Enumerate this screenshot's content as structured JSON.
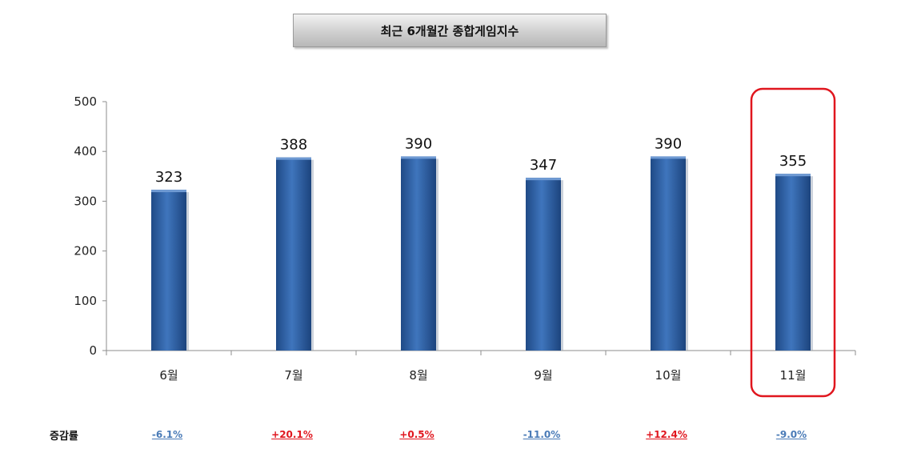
{
  "title": "최근 6개월간 종합게임지수",
  "chart_data": {
    "type": "bar",
    "categories": [
      "6월",
      "7월",
      "8월",
      "9월",
      "10월",
      "11월"
    ],
    "values": [
      323,
      388,
      390,
      347,
      390,
      355
    ],
    "ylim": [
      0,
      500
    ],
    "yticks": [
      0,
      100,
      200,
      300,
      400,
      500
    ],
    "highlighted_category": "11월",
    "colors": {
      "bar": "#3A6EB2",
      "highlight": "#E0161E",
      "up": "#E0161E",
      "down": "#4A7BB7"
    }
  },
  "change_row": {
    "label": "증감률",
    "values": [
      "-6.1%",
      "+20.1%",
      "+0.5%",
      "-11.0%",
      "+12.4%",
      "-9.0%"
    ]
  }
}
